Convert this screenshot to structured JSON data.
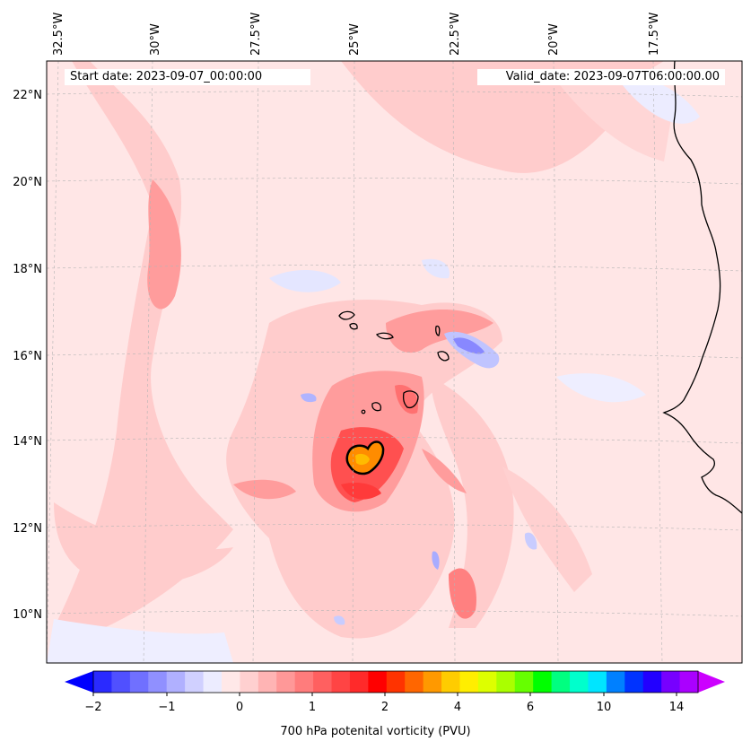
{
  "header": {
    "start_date": "Start date: 2023-09-07_00:00:00",
    "valid_date": "Valid_date: 2023-09-07T06:00:00.00"
  },
  "axes": {
    "longitude_labels": [
      "32.5°W",
      "30°W",
      "27.5°W",
      "25°W",
      "22.5°W",
      "20°W",
      "17.5°W"
    ],
    "latitude_labels": [
      "22°N",
      "20°N",
      "18°N",
      "16°N",
      "14°N",
      "12°N",
      "10°N"
    ]
  },
  "colorbar": {
    "title": "700 hPa potenital vorticity (PVU)",
    "tick_labels": [
      "−2",
      "−1",
      "0",
      "1",
      "2",
      "4",
      "6",
      "10",
      "14"
    ],
    "colors": [
      "#0000ff",
      "#2a2aff",
      "#5050ff",
      "#7070ff",
      "#9090ff",
      "#b0b0ff",
      "#d0d0ff",
      "#ececff",
      "#ffe8e8",
      "#ffd0d0",
      "#ffb4b4",
      "#ff9898",
      "#ff7c7c",
      "#ff6060",
      "#ff4444",
      "#ff2a2a",
      "#ff0000",
      "#ff3300",
      "#ff6600",
      "#ff9900",
      "#ffcc00",
      "#ffee00",
      "#ddff00",
      "#aaff00",
      "#66ff00",
      "#00ff00",
      "#00ff80",
      "#00ffcc",
      "#00e5ff",
      "#0080ff",
      "#0033ff",
      "#2200ff",
      "#7700ff",
      "#aa00ff",
      "#cc00ff"
    ]
  },
  "colors": {
    "background": "#ffe6e6",
    "light_red": "#ffcccc",
    "medium_red": "#ff9c9c",
    "dark_red": "#ff5050",
    "light_blue": "#e4e6ff",
    "medium_blue": "#9898ff",
    "orange_core": "#ff8c00"
  }
}
